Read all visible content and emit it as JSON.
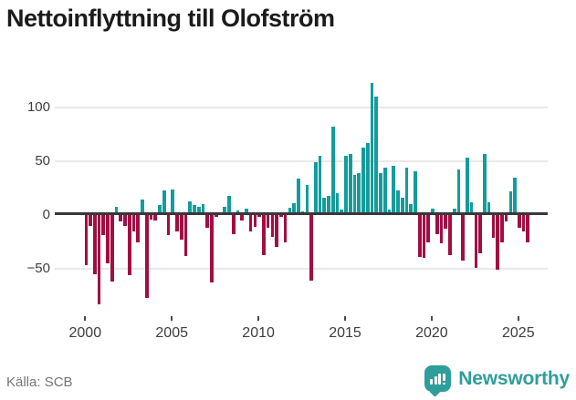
{
  "title": "Nettoinflyttning till Olofström",
  "source": "Källa: SCB",
  "brand": {
    "name": "Newsworthy",
    "color": "#2f9e9b",
    "icon": "bar-chart-bubble-icon"
  },
  "chart_data": {
    "type": "bar",
    "title": "Nettoinflyttning till Olofström",
    "xlabel": "",
    "ylabel": "",
    "frequency": "quarterly",
    "start_period": "2000-Q1",
    "end_period": "2025-Q3",
    "x_tick_labels": [
      "2000",
      "2005",
      "2010",
      "2015",
      "2020",
      "2025"
    ],
    "y_tick_values": [
      -50,
      0,
      50,
      100
    ],
    "y_tick_labels": [
      "−50",
      "0",
      "50",
      "100"
    ],
    "ylim": [
      -92,
      128
    ],
    "grid": "horizontal",
    "legend": "none",
    "colors": {
      "positive": "#149c9c",
      "negative": "#a20d42"
    },
    "values": [
      -47,
      -10,
      -55,
      -83,
      -19,
      -45,
      -62,
      8,
      -6,
      -10,
      -56,
      -15,
      -25,
      14,
      -77,
      -4,
      -5,
      9,
      23,
      -19,
      24,
      -15,
      -23,
      -38,
      13,
      9,
      8,
      10,
      -12,
      -63,
      -2,
      2,
      8,
      18,
      -18,
      4,
      -5,
      6,
      -15,
      -11,
      -2,
      -37,
      -12,
      -20,
      -30,
      -2,
      -25,
      7,
      11,
      34,
      3,
      28,
      -61,
      49,
      55,
      16,
      18,
      82,
      20,
      5,
      55,
      57,
      37,
      39,
      63,
      67,
      123,
      110,
      39,
      44,
      5,
      46,
      23,
      16,
      44,
      10,
      41,
      -39,
      -40,
      -25,
      6,
      -18,
      -26,
      -13,
      -37,
      6,
      42,
      -42,
      53,
      12,
      -49,
      -36,
      57,
      12,
      -21,
      -51,
      -25,
      -6,
      22,
      35,
      -12,
      -15,
      -25
    ]
  }
}
